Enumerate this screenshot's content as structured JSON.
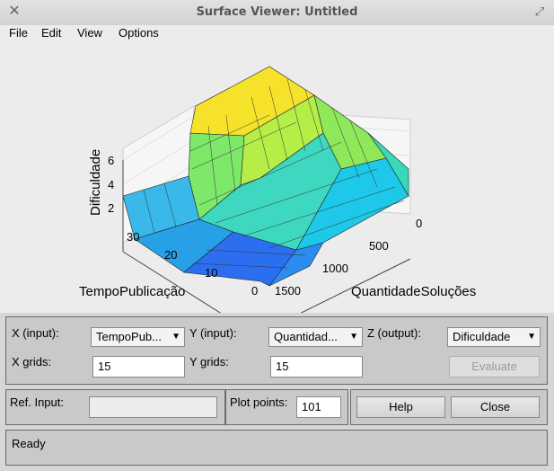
{
  "window": {
    "title": "Surface Viewer: Untitled"
  },
  "menu": [
    "File",
    "Edit",
    "View",
    "Options"
  ],
  "plot": {
    "zlabel": "Dificuldade",
    "xlabel": "QuantidadeSoluções",
    "ylabel": "TempoPublicação",
    "zticks": [
      "2",
      "4",
      "6"
    ],
    "xticks": [
      "0",
      "500",
      "1000",
      "1500"
    ],
    "yticks": [
      "0",
      "10",
      "20",
      "30"
    ]
  },
  "controls": {
    "x_input_label": "X (input):",
    "x_input_value": "TempoPub...",
    "y_input_label": "Y (input):",
    "y_input_value": "Quantidad...",
    "z_output_label": "Z (output):",
    "z_output_value": "Dificuldade",
    "x_grids_label": "X grids:",
    "x_grids_value": "15",
    "y_grids_label": "Y grids:",
    "y_grids_value": "15",
    "evaluate_label": "Evaluate"
  },
  "refinput": {
    "label": "Ref. Input:",
    "value": ""
  },
  "plotpoints": {
    "label": "Plot points:",
    "value": "101"
  },
  "buttons": {
    "help": "Help",
    "close": "Close"
  },
  "status": {
    "text": "Ready"
  }
}
